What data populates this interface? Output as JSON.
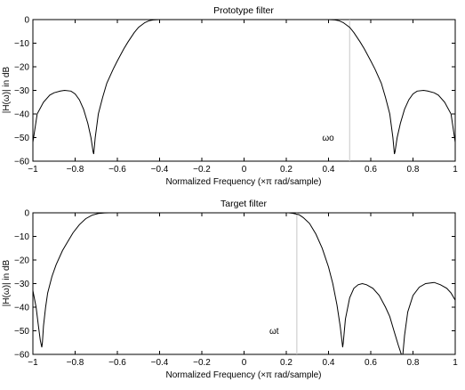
{
  "chart_data": [
    {
      "type": "line",
      "title": "Prototype filter",
      "xlabel": "Normalized Frequency  (×π rad/sample)",
      "ylabel": "|H(ω)| in dB",
      "xlim": [
        -1,
        1
      ],
      "ylim": [
        -60,
        0
      ],
      "xticks": [
        "−1",
        "−0.8",
        "−0.6",
        "−0.4",
        "−0.2",
        "0",
        "0.2",
        "0.4",
        "0.6",
        "0.8",
        "1"
      ],
      "yticks": [
        "0",
        "−10",
        "−20",
        "−30",
        "−40",
        "−50",
        "−60"
      ],
      "grid": false,
      "annotation": {
        "text": "ωo",
        "x": 0.37,
        "y": -50
      },
      "marker_x": 0.5,
      "series": [
        {
          "x": [
            -1.0,
            -0.98,
            -0.95,
            -0.92,
            -0.9,
            -0.87,
            -0.85,
            -0.82,
            -0.8,
            -0.78,
            -0.76,
            -0.74,
            -0.725,
            -0.715,
            -0.712,
            -0.705,
            -0.69,
            -0.67,
            -0.65,
            -0.62,
            -0.6,
            -0.57,
            -0.55,
            -0.52,
            -0.5,
            -0.47,
            -0.45,
            -0.43,
            -0.41,
            -0.4,
            0.4,
            0.41,
            0.43,
            0.45,
            0.47,
            0.5,
            0.52,
            0.55,
            0.57,
            0.6,
            0.62,
            0.65,
            0.67,
            0.69,
            0.705,
            0.712,
            0.715,
            0.725,
            0.74,
            0.76,
            0.78,
            0.8,
            0.82,
            0.85,
            0.87,
            0.9,
            0.92,
            0.95,
            0.98,
            1.0
          ],
          "y": [
            -52,
            -40,
            -35,
            -32,
            -31,
            -30.3,
            -30,
            -30.3,
            -31.5,
            -34,
            -38,
            -44,
            -50,
            -56,
            -57,
            -50,
            -40,
            -33,
            -27,
            -21,
            -17.5,
            -12.5,
            -9.5,
            -5.5,
            -3.3,
            -1.3,
            -0.5,
            -0.15,
            -0.02,
            0,
            0,
            -0.02,
            -0.15,
            -0.5,
            -1.3,
            -3.3,
            -5.5,
            -9.5,
            -12.5,
            -17.5,
            -21,
            -27,
            -33,
            -40,
            -50,
            -57,
            -56,
            -50,
            -44,
            -38,
            -34,
            -31.5,
            -30.3,
            -30,
            -30.3,
            -31,
            -32,
            -35,
            -40,
            -52
          ]
        }
      ]
    },
    {
      "type": "line",
      "title": "Target filter",
      "xlabel": "Normalized Frequency  (×π rad/sample)",
      "ylabel": "|H(ω)| in dB",
      "xlim": [
        -1,
        1
      ],
      "ylim": [
        -60,
        0
      ],
      "xticks": [
        "−1",
        "−0.8",
        "−0.6",
        "−0.4",
        "−0.2",
        "0",
        "0.2",
        "0.4",
        "0.6",
        "0.8",
        "1"
      ],
      "yticks": [
        "0",
        "−10",
        "−20",
        "−30",
        "−40",
        "−50",
        "−60"
      ],
      "grid": false,
      "annotation": {
        "text": "ωt",
        "x": 0.12,
        "y": -50
      },
      "marker_x": 0.25,
      "series": [
        {
          "x": [
            -1.0,
            -0.985,
            -0.975,
            -0.965,
            -0.958,
            -0.955,
            -0.95,
            -0.94,
            -0.93,
            -0.91,
            -0.89,
            -0.86,
            -0.84,
            -0.81,
            -0.78,
            -0.75,
            -0.72,
            -0.69,
            -0.66,
            -0.64,
            -0.62,
            0.21,
            0.23,
            0.26,
            0.28,
            0.31,
            0.34,
            0.37,
            0.4,
            0.42,
            0.44,
            0.455,
            0.463,
            0.467,
            0.47,
            0.48,
            0.5,
            0.52,
            0.54,
            0.56,
            0.58,
            0.61,
            0.64,
            0.67,
            0.69,
            0.71,
            0.73,
            0.745,
            0.752,
            0.76,
            0.775,
            0.8,
            0.83,
            0.86,
            0.9,
            0.93,
            0.96,
            0.98,
            1.0
          ],
          "y": [
            -33,
            -40,
            -47,
            -54,
            -57,
            -55,
            -48,
            -40,
            -34,
            -27,
            -22,
            -16,
            -13,
            -8.5,
            -5,
            -2.5,
            -1,
            -0.3,
            -0.05,
            0,
            0,
            0,
            -0.2,
            -0.8,
            -2,
            -4.5,
            -9,
            -15,
            -23,
            -30,
            -39,
            -48,
            -54,
            -57,
            -55,
            -45,
            -36,
            -32,
            -30.5,
            -30,
            -30.5,
            -32,
            -35,
            -40,
            -44,
            -50,
            -56,
            -60,
            -60,
            -52,
            -42,
            -35,
            -31.5,
            -30,
            -29.5,
            -30.5,
            -32,
            -34,
            -37
          ]
        }
      ]
    }
  ]
}
